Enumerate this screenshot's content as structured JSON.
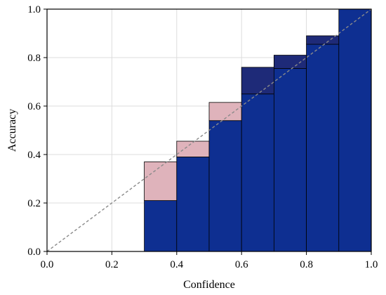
{
  "chart_data": {
    "type": "bar",
    "title": "",
    "xlabel": "Confidence",
    "ylabel": "Accuracy",
    "xlim": [
      0.0,
      1.0
    ],
    "ylim": [
      0.0,
      1.0
    ],
    "xticks": [
      "0.0",
      "0.2",
      "0.4",
      "0.6",
      "0.8",
      "1.0"
    ],
    "yticks": [
      "0.0",
      "0.2",
      "0.4",
      "0.6",
      "0.8",
      "1.0"
    ],
    "grid": true,
    "legend": "none",
    "diagonal_reference": true,
    "bins": [
      {
        "x0": 0.3,
        "x1": 0.4,
        "accuracy": 0.21,
        "gap_to": 0.37
      },
      {
        "x0": 0.4,
        "x1": 0.5,
        "accuracy": 0.39,
        "gap_to": 0.455
      },
      {
        "x0": 0.5,
        "x1": 0.6,
        "accuracy": 0.54,
        "gap_to": 0.615
      },
      {
        "x0": 0.6,
        "x1": 0.7,
        "accuracy": 0.76,
        "gap_to": 0.65
      },
      {
        "x0": 0.7,
        "x1": 0.8,
        "accuracy": 0.81,
        "gap_to": 0.755
      },
      {
        "x0": 0.8,
        "x1": 0.9,
        "accuracy": 0.89,
        "gap_to": 0.855
      },
      {
        "x0": 0.9,
        "x1": 1.0,
        "accuracy": 1.0,
        "gap_to": 1.0
      }
    ],
    "colors": {
      "bar": "#0e2f91",
      "gap_over": "#1e2a78",
      "gap_under": "#dfb3bb",
      "diagonal": "#8a8a8a",
      "grid": "#dddddd"
    }
  }
}
